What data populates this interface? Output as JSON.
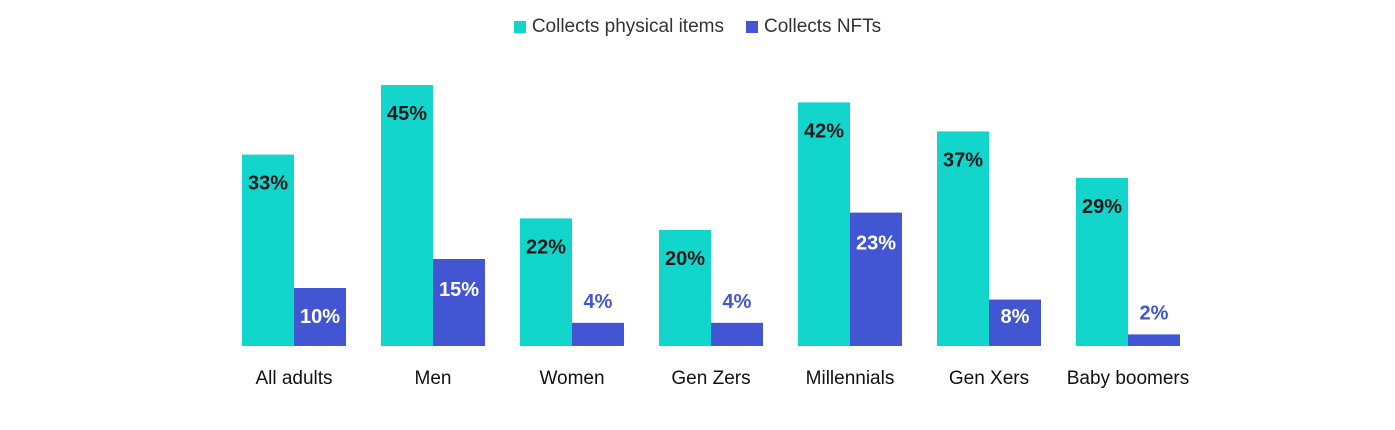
{
  "chart_data": {
    "type": "bar",
    "categories": [
      "All adults",
      "Men",
      "Women",
      "Gen Zers",
      "Millennials",
      "Gen Xers",
      "Baby boomers"
    ],
    "series": [
      {
        "name": "Collects physical items",
        "values": [
          33,
          45,
          22,
          20,
          42,
          37,
          29
        ],
        "labels": [
          "33%",
          "45%",
          "22%",
          "20%",
          "42%",
          "37%",
          "29%"
        ],
        "color": "#12D5CB"
      },
      {
        "name": "Collects NFTs",
        "values": [
          10,
          15,
          4,
          4,
          23,
          8,
          2
        ],
        "labels": [
          "10%",
          "15%",
          "4%",
          "4%",
          "23%",
          "8%",
          "2%"
        ],
        "color": "#4256D3"
      }
    ],
    "title": "",
    "xlabel": "",
    "ylabel": "",
    "ylim": [
      0,
      45
    ],
    "grid": false,
    "legend_position": "top-center"
  },
  "colors": {
    "label_dark": "#1A1A1A",
    "label_light": "#FFFFFF",
    "label_blue": "#4256D3"
  }
}
